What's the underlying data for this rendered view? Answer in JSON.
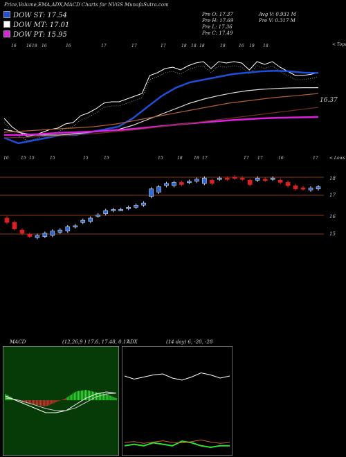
{
  "header": {
    "title": "Price,Volume,EMA,ADX,MACD Charts for NVGS MunafaSutra.com"
  },
  "legend": {
    "items": [
      {
        "label": "DOW ST: 17.54",
        "color": "#1f4fd8"
      },
      {
        "label": "DOW MT: 17.01",
        "color": "#ffffff"
      },
      {
        "label": "DOW PT: 15.95",
        "color": "#e020e0"
      }
    ]
  },
  "ohlc": {
    "open": "Pre  O: 17.37",
    "high": "Pre  H: 17.69",
    "low": "Pre  L: 17.36",
    "close": "Pre  C: 17.49",
    "avg_volume": "Avg V: 0.931 M",
    "pre_volume": "Pre  V: 0.317 M"
  },
  "ema_panel": {
    "top_label": "< Tops",
    "lows_label": "< Lows",
    "last_value": "16.37",
    "top_dates": [
      "16",
      "16",
      "16",
      "16",
      "17",
      "17",
      "17",
      "18",
      "18",
      "18",
      "18",
      "16",
      "19",
      "18",
      "18"
    ],
    "low_dates": [
      "16",
      "15",
      "15",
      "15",
      "15",
      "15",
      "15",
      "18",
      "18",
      "17",
      "17",
      "17",
      "16",
      "17"
    ]
  },
  "price_panel": {
    "levels": [
      "18",
      "17",
      "16",
      "15"
    ]
  },
  "macd": {
    "label": "MACD",
    "params": "(12,26,9 ) 17.6, 17.48, 0.17"
  },
  "adx": {
    "label": "ADX",
    "params": "(14 day) 6, -20, -28"
  },
  "chart_data": [
    {
      "type": "line",
      "title": "Price,Volume,EMA,ADX,MACD Charts for NVGS MunafaSutra.com",
      "series": [
        {
          "name": "DOW ST",
          "values": [
            15.2,
            15.0,
            15.1,
            15.2,
            15.3,
            15.3,
            15.4,
            15.5,
            15.6,
            15.9,
            16.3,
            16.7,
            17.0,
            17.2,
            17.3,
            17.4,
            17.5,
            17.55,
            17.6,
            17.62,
            17.6,
            17.55,
            17.54
          ]
        },
        {
          "name": "DOW MT",
          "values": [
            15.5,
            15.4,
            15.3,
            15.3,
            15.3,
            15.35,
            15.4,
            15.45,
            15.5,
            15.65,
            15.85,
            16.05,
            16.25,
            16.45,
            16.6,
            16.72,
            16.82,
            16.9,
            16.95,
            16.98,
            17.0,
            17.01,
            17.01
          ]
        },
        {
          "name": "DOW PT",
          "values": [
            15.3,
            15.3,
            15.32,
            15.35,
            15.38,
            15.4,
            15.42,
            15.45,
            15.48,
            15.52,
            15.57,
            15.62,
            15.67,
            15.72,
            15.76,
            15.8,
            15.84,
            15.87,
            15.9,
            15.92,
            15.93,
            15.94,
            15.95
          ]
        }
      ]
    },
    {
      "type": "bar",
      "title": "Candles",
      "ylim": [
        14.5,
        18.5
      ],
      "series": [
        {
          "name": "open",
          "values": [
            16.1,
            15.9,
            15.55,
            15.35,
            15.2,
            15.25,
            15.3,
            15.45,
            15.5,
            15.7,
            15.9,
            15.95,
            16.2,
            16.3,
            16.45,
            16.5,
            16.55,
            16.6,
            16.7,
            17.1,
            17.3,
            17.6,
            17.6,
            17.75,
            17.75,
            17.8,
            17.7,
            17.85,
            17.9,
            17.95,
            18.0,
            17.95,
            17.85,
            17.85,
            17.9,
            17.9,
            17.85,
            17.75,
            17.6,
            17.5,
            17.4,
            17.45
          ]
        },
        {
          "name": "close",
          "values": [
            15.9,
            15.6,
            15.4,
            15.25,
            15.3,
            15.4,
            15.5,
            15.55,
            15.7,
            15.75,
            16.0,
            16.1,
            16.25,
            16.45,
            16.5,
            16.5,
            16.6,
            16.7,
            16.8,
            17.45,
            17.55,
            17.7,
            17.75,
            17.65,
            17.8,
            17.9,
            17.95,
            17.7,
            17.95,
            17.9,
            17.95,
            17.9,
            17.65,
            17.95,
            17.85,
            17.95,
            17.75,
            17.6,
            17.45,
            17.45,
            17.49,
            17.55
          ]
        }
      ]
    },
    {
      "type": "line",
      "title": "MACD",
      "series": [
        {
          "name": "MACD",
          "values": [
            0.1,
            0.0,
            -0.1,
            -0.2,
            -0.3,
            -0.3,
            -0.25,
            -0.1,
            0.05,
            0.15,
            0.2,
            0.17
          ]
        },
        {
          "name": "signal",
          "values": [
            0.05,
            0.02,
            -0.05,
            -0.12,
            -0.2,
            -0.25,
            -0.25,
            -0.18,
            -0.05,
            0.08,
            0.15,
            0.17
          ]
        }
      ]
    },
    {
      "type": "line",
      "title": "ADX",
      "series": [
        {
          "name": "ADX",
          "values": [
            6,
            7,
            6,
            8,
            7,
            6,
            9,
            8,
            6,
            5,
            6,
            6
          ]
        },
        {
          "name": "DI-",
          "values": [
            20,
            22,
            18,
            21,
            24,
            20,
            19,
            22,
            26,
            21,
            18,
            20
          ]
        },
        {
          "name": "DI+",
          "values": [
            28,
            25,
            27,
            29,
            30,
            26,
            24,
            27,
            31,
            29,
            26,
            28
          ]
        }
      ]
    }
  ]
}
